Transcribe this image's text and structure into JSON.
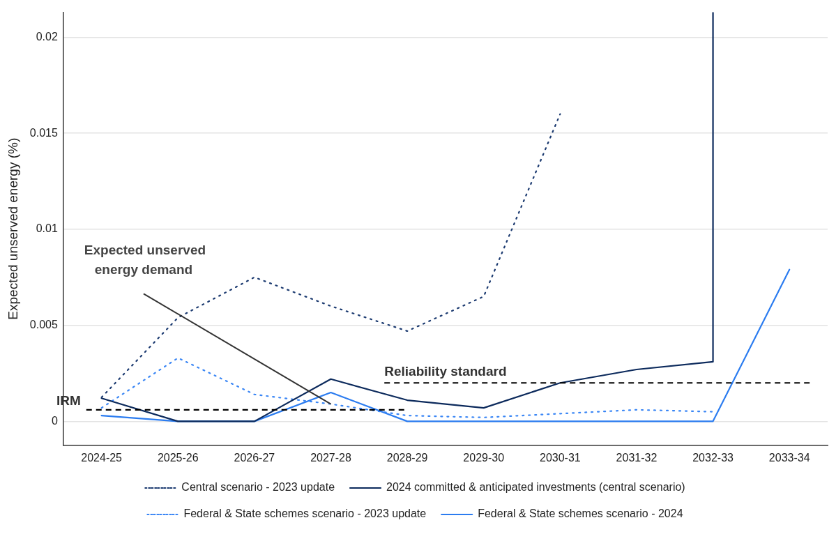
{
  "chart_data": {
    "type": "line",
    "ylabel": "Expected unserved energy (%)",
    "categories": [
      "2024-25",
      "2025-26",
      "2026-27",
      "2027-28",
      "2028-29",
      "2029-30",
      "2030-31",
      "2031-32",
      "2032-33",
      "2033-34"
    ],
    "series": [
      {
        "name": "Central scenario - 2023 update",
        "color": "#1b3a70",
        "line_style": "dotted",
        "values": [
          0.00125,
          0.0054,
          0.0075,
          0.006,
          0.0047,
          0.0065,
          0.016,
          null,
          null,
          null
        ]
      },
      {
        "name": "2024 committed & anticipated investments (central scenario)",
        "color": "#0c2a5c",
        "line_style": "solid",
        "x": [
          "2024-25",
          "2025-26",
          "2026-27",
          "2027-28",
          "2028-29",
          "2029-30",
          "2030-31",
          "2031-32",
          "2032-33",
          "2032-33"
        ],
        "values": [
          0.0012,
          0,
          0,
          0.0022,
          0.0011,
          0.0007,
          0.002,
          0.0027,
          0.0031,
          0.0213
        ]
      },
      {
        "name": "Federal & State schemes scenario - 2023 update",
        "color": "#3a86f5",
        "line_style": "dotted",
        "values": [
          0.0007,
          0.0033,
          0.0014,
          0.0009,
          0.0003,
          0.0002,
          0.0004,
          0.0006,
          0.0005,
          null
        ]
      },
      {
        "name": "Federal & State schemes scenario - 2024",
        "color": "#2b7cf0",
        "line_style": "solid",
        "values": [
          0.0003,
          0,
          0,
          0.0015,
          0,
          0,
          0,
          0,
          0,
          0.0079
        ]
      }
    ],
    "ylim": [
      -0.00125,
      0.0213
    ],
    "yticks": [
      0,
      0.005,
      0.01,
      0.015,
      0.02
    ],
    "ref_lines": [
      {
        "axis": "y",
        "value": 0.0006,
        "label": "IRM",
        "color": "#000000",
        "line_style": "dashed"
      },
      {
        "axis": "y",
        "value": 0.002,
        "label": "Reliability standard",
        "color": "#000000",
        "line_style": "dashed"
      }
    ],
    "annotations": [
      {
        "text": "Expected unserved energy demand",
        "x": "2027-28",
        "y": 0.0009
      }
    ],
    "grid": "y",
    "legend": "bottom",
    "marker": "none"
  }
}
